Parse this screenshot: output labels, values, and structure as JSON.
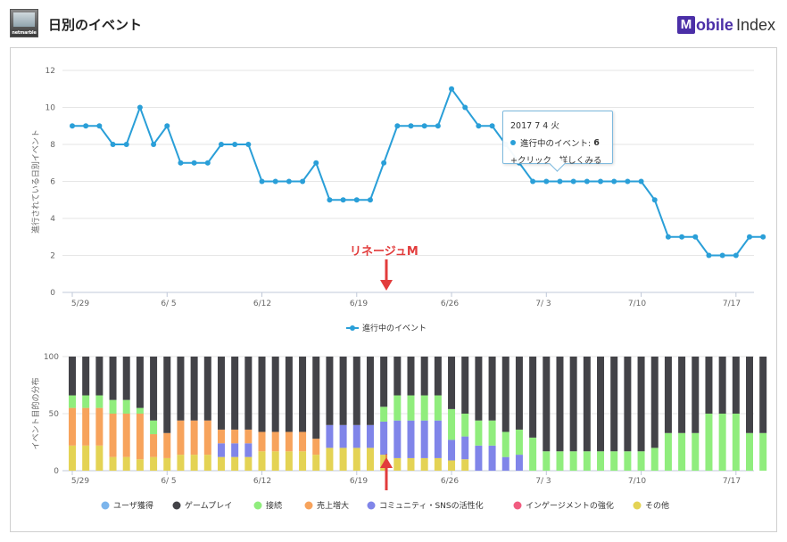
{
  "header": {
    "title": "日別のイベント",
    "app_logo_text": "netmarble",
    "brand": {
      "m": "M",
      "rest": "obile",
      "index": "Index"
    }
  },
  "annotation": {
    "label": "リネージュM",
    "color": "#e23c3c"
  },
  "tooltip": {
    "date": "2017 7 4 火",
    "series_label": "進行中のイベント:",
    "value": "6",
    "hint": "+クリック、詳しくみる"
  },
  "chart_data": [
    {
      "type": "line",
      "ylabel": "進行されている日別イベント",
      "ylim": [
        0,
        12
      ],
      "yticks": [
        "0",
        "2",
        "4",
        "6",
        "8",
        "10",
        "12"
      ],
      "xtick_labels": [
        "5/29",
        "6/ 5",
        "6/12",
        "6/19",
        "6/26",
        "7/ 3",
        "7/10",
        "7/17"
      ],
      "series": [
        {
          "name": "進行中のイベント",
          "color": "#2a9fd8",
          "values": [
            9,
            9,
            9,
            8,
            8,
            10,
            8,
            9,
            7,
            7,
            7,
            8,
            8,
            8,
            6,
            6,
            6,
            6,
            7,
            5,
            5,
            5,
            5,
            7,
            9,
            9,
            9,
            9,
            11,
            10,
            9,
            9,
            8,
            7,
            6,
            6,
            6,
            6,
            6,
            6,
            6,
            6,
            6,
            5,
            3,
            3,
            3,
            2,
            2,
            2,
            3,
            3
          ]
        }
      ],
      "legend": "bottom"
    },
    {
      "type": "bar",
      "stacked": true,
      "ylabel": "イベント目的の分布",
      "ylim": [
        0,
        100
      ],
      "yticks": [
        "0",
        "50",
        "100"
      ],
      "xtick_labels": [
        "5/29",
        "6/ 5",
        "6/12",
        "6/19",
        "6/26",
        "7/ 3",
        "7/10",
        "7/17"
      ],
      "series": [
        {
          "name": "ユーザ獲得",
          "color": "#7cb5ec"
        },
        {
          "name": "ゲームプレイ",
          "color": "#434348"
        },
        {
          "name": "接続",
          "color": "#90ed7d"
        },
        {
          "name": "売上増大",
          "color": "#f7a35c"
        },
        {
          "name": "コミュニティ・SNSの活性化",
          "color": "#8085e9"
        },
        {
          "name": "インゲージメントの強化",
          "color": "#f15c80"
        },
        {
          "name": "その他",
          "color": "#e4d354"
        }
      ],
      "stack_order": [
        "その他",
        "インゲージメントの強化",
        "コミュニティ・SNSの活性化",
        "売上増大",
        "接続",
        "ユーザ獲得",
        "ゲームプレイ"
      ],
      "values": [
        [
          22,
          0,
          0,
          33,
          11,
          0,
          34
        ],
        [
          22,
          0,
          0,
          33,
          11,
          0,
          34
        ],
        [
          22,
          0,
          0,
          33,
          11,
          0,
          34
        ],
        [
          12,
          0,
          0,
          38,
          12,
          0,
          38
        ],
        [
          12,
          0,
          0,
          38,
          12,
          0,
          38
        ],
        [
          10,
          0,
          0,
          40,
          5,
          0,
          45
        ],
        [
          12,
          0,
          0,
          20,
          12,
          0,
          56
        ],
        [
          11,
          0,
          0,
          22,
          0,
          0,
          67
        ],
        [
          14,
          0,
          0,
          30,
          0,
          0,
          56
        ],
        [
          14,
          0,
          0,
          30,
          0,
          0,
          56
        ],
        [
          14,
          0,
          0,
          30,
          0,
          0,
          56
        ],
        [
          12,
          0,
          12,
          12,
          0,
          0,
          64
        ],
        [
          12,
          0,
          12,
          12,
          0,
          0,
          64
        ],
        [
          12,
          0,
          12,
          12,
          0,
          0,
          64
        ],
        [
          17,
          0,
          0,
          17,
          0,
          0,
          66
        ],
        [
          17,
          0,
          0,
          17,
          0,
          0,
          66
        ],
        [
          17,
          0,
          0,
          17,
          0,
          0,
          66
        ],
        [
          17,
          0,
          0,
          17,
          0,
          0,
          66
        ],
        [
          14,
          0,
          0,
          14,
          0,
          0,
          72
        ],
        [
          20,
          0,
          20,
          0,
          0,
          0,
          60
        ],
        [
          20,
          0,
          20,
          0,
          0,
          0,
          60
        ],
        [
          20,
          0,
          20,
          0,
          0,
          0,
          60
        ],
        [
          20,
          0,
          20,
          0,
          0,
          0,
          60
        ],
        [
          14,
          0,
          29,
          0,
          13,
          0,
          44
        ],
        [
          11,
          0,
          33,
          0,
          22,
          0,
          34
        ],
        [
          11,
          0,
          33,
          0,
          22,
          0,
          34
        ],
        [
          11,
          0,
          33,
          0,
          22,
          0,
          34
        ],
        [
          11,
          0,
          33,
          0,
          22,
          0,
          34
        ],
        [
          9,
          0,
          18,
          0,
          27,
          0,
          46
        ],
        [
          10,
          0,
          20,
          0,
          20,
          0,
          50
        ],
        [
          0,
          0,
          22,
          0,
          22,
          0,
          56
        ],
        [
          0,
          0,
          22,
          0,
          22,
          0,
          56
        ],
        [
          0,
          0,
          12,
          0,
          22,
          0,
          66
        ],
        [
          0,
          0,
          14,
          0,
          22,
          0,
          64
        ],
        [
          0,
          0,
          0,
          0,
          29,
          0,
          71
        ],
        [
          0,
          0,
          0,
          0,
          17,
          0,
          83
        ],
        [
          0,
          0,
          0,
          0,
          17,
          0,
          83
        ],
        [
          0,
          0,
          0,
          0,
          17,
          0,
          83
        ],
        [
          0,
          0,
          0,
          0,
          17,
          0,
          83
        ],
        [
          0,
          0,
          0,
          0,
          17,
          0,
          83
        ],
        [
          0,
          0,
          0,
          0,
          17,
          0,
          83
        ],
        [
          0,
          0,
          0,
          0,
          17,
          0,
          83
        ],
        [
          0,
          0,
          0,
          0,
          17,
          0,
          83
        ],
        [
          0,
          0,
          0,
          0,
          20,
          0,
          80
        ],
        [
          0,
          0,
          0,
          0,
          33,
          0,
          67
        ],
        [
          0,
          0,
          0,
          0,
          33,
          0,
          67
        ],
        [
          0,
          0,
          0,
          0,
          33,
          0,
          67
        ],
        [
          0,
          0,
          0,
          0,
          50,
          0,
          50
        ],
        [
          0,
          0,
          0,
          0,
          50,
          0,
          50
        ],
        [
          0,
          0,
          0,
          0,
          50,
          0,
          50
        ],
        [
          0,
          0,
          0,
          0,
          33,
          0,
          67
        ],
        [
          0,
          0,
          0,
          0,
          33,
          0,
          67
        ]
      ],
      "values_order": [
        "その他",
        "インゲージメントの強化",
        "コミュニティ・SNSの活性化",
        "売上増大",
        "接続",
        "ユーザ獲得",
        "ゲームプレイ"
      ],
      "legend": "bottom"
    }
  ]
}
